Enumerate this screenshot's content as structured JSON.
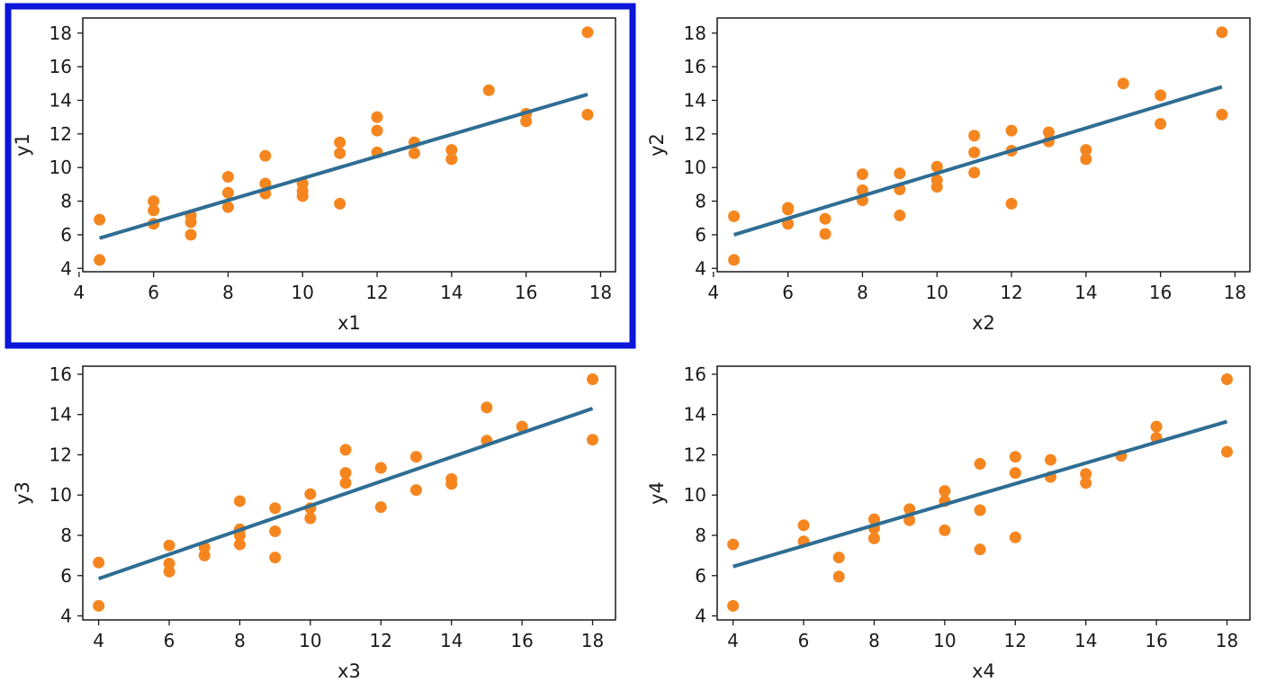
{
  "colors": {
    "point": "#f5861f",
    "line": "#2f6d93",
    "axis": "#1a1a1a",
    "highlight": "#0a16d8",
    "background": "#ffffff"
  },
  "highlighted_panel": 0,
  "chart_data": [
    {
      "type": "scatter",
      "xlabel": "x1",
      "ylabel": "y1",
      "xlim": [
        4.1,
        18.4
      ],
      "ylim": [
        3.8,
        18.9
      ],
      "xticks": [
        4,
        6,
        8,
        10,
        12,
        14,
        16,
        18
      ],
      "yticks": [
        4,
        6,
        8,
        10,
        12,
        14,
        16,
        18
      ],
      "grid": false,
      "points": [
        [
          4.55,
          4.5
        ],
        [
          4.55,
          6.9
        ],
        [
          6,
          6.65
        ],
        [
          6,
          7.45
        ],
        [
          6,
          8.0
        ],
        [
          7,
          6.0
        ],
        [
          7,
          6.75
        ],
        [
          7,
          7.15
        ],
        [
          8,
          7.65
        ],
        [
          8,
          8.5
        ],
        [
          8,
          9.45
        ],
        [
          9,
          8.45
        ],
        [
          9,
          9.05
        ],
        [
          9,
          10.7
        ],
        [
          10,
          8.3
        ],
        [
          10,
          8.6
        ],
        [
          10,
          9.05
        ],
        [
          11,
          7.85
        ],
        [
          11,
          10.85
        ],
        [
          11,
          11.5
        ],
        [
          12,
          10.9
        ],
        [
          12,
          12.2
        ],
        [
          12,
          13.0
        ],
        [
          13,
          10.85
        ],
        [
          13,
          11.5
        ],
        [
          14,
          10.5
        ],
        [
          14,
          11.05
        ],
        [
          15,
          14.6
        ],
        [
          16,
          12.75
        ],
        [
          16,
          13.2
        ],
        [
          17.65,
          13.15
        ],
        [
          17.65,
          18.05
        ]
      ],
      "fit_line": [
        [
          4.55,
          5.8
        ],
        [
          17.65,
          14.35
        ]
      ]
    },
    {
      "type": "scatter",
      "xlabel": "x2",
      "ylabel": "y2",
      "xlim": [
        4.1,
        18.4
      ],
      "ylim": [
        3.8,
        18.9
      ],
      "xticks": [
        4,
        6,
        8,
        10,
        12,
        14,
        16,
        18
      ],
      "yticks": [
        4,
        6,
        8,
        10,
        12,
        14,
        16,
        18
      ],
      "grid": false,
      "points": [
        [
          4.55,
          4.5
        ],
        [
          4.55,
          7.1
        ],
        [
          6,
          6.65
        ],
        [
          6,
          7.5
        ],
        [
          6,
          7.6
        ],
        [
          7,
          6.05
        ],
        [
          7,
          6.95
        ],
        [
          8,
          8.05
        ],
        [
          8,
          8.65
        ],
        [
          8,
          9.6
        ],
        [
          9,
          7.15
        ],
        [
          9,
          8.7
        ],
        [
          9,
          9.65
        ],
        [
          10,
          8.85
        ],
        [
          10,
          9.25
        ],
        [
          10,
          10.05
        ],
        [
          11,
          9.7
        ],
        [
          11,
          10.9
        ],
        [
          11,
          11.9
        ],
        [
          12,
          7.85
        ],
        [
          12,
          11.0
        ],
        [
          12,
          12.2
        ],
        [
          13,
          11.55
        ],
        [
          13,
          12.1
        ],
        [
          14,
          10.5
        ],
        [
          14,
          11.05
        ],
        [
          15,
          15.0
        ],
        [
          16,
          12.6
        ],
        [
          16,
          14.3
        ],
        [
          17.65,
          13.15
        ],
        [
          17.65,
          18.05
        ]
      ],
      "fit_line": [
        [
          4.55,
          6.0
        ],
        [
          17.65,
          14.8
        ]
      ]
    },
    {
      "type": "scatter",
      "xlabel": "x3",
      "ylabel": "y3",
      "xlim": [
        3.55,
        18.65
      ],
      "ylim": [
        3.8,
        16.4
      ],
      "xticks": [
        4,
        6,
        8,
        10,
        12,
        14,
        16,
        18
      ],
      "yticks": [
        4,
        6,
        8,
        10,
        12,
        14,
        16
      ],
      "grid": false,
      "points": [
        [
          4,
          4.5
        ],
        [
          4,
          6.65
        ],
        [
          6,
          6.2
        ],
        [
          6,
          6.6
        ],
        [
          6,
          7.5
        ],
        [
          7,
          7.0
        ],
        [
          7,
          7.4
        ],
        [
          8,
          7.55
        ],
        [
          8,
          8.0
        ],
        [
          8,
          8.3
        ],
        [
          8,
          9.7
        ],
        [
          9,
          6.9
        ],
        [
          9,
          8.2
        ],
        [
          9,
          9.35
        ],
        [
          10,
          8.85
        ],
        [
          10,
          9.35
        ],
        [
          10,
          10.05
        ],
        [
          11,
          10.6
        ],
        [
          11,
          11.1
        ],
        [
          11,
          12.25
        ],
        [
          12,
          9.4
        ],
        [
          12,
          11.35
        ],
        [
          13,
          10.25
        ],
        [
          13,
          11.9
        ],
        [
          14,
          10.55
        ],
        [
          14,
          10.8
        ],
        [
          15,
          12.7
        ],
        [
          15,
          14.35
        ],
        [
          16,
          13.4
        ],
        [
          18,
          12.75
        ],
        [
          18,
          15.75
        ]
      ],
      "fit_line": [
        [
          4,
          5.85
        ],
        [
          18,
          14.3
        ]
      ]
    },
    {
      "type": "scatter",
      "xlabel": "x4",
      "ylabel": "y4",
      "xlim": [
        3.55,
        18.65
      ],
      "ylim": [
        3.8,
        16.4
      ],
      "xticks": [
        4,
        6,
        8,
        10,
        12,
        14,
        16,
        18
      ],
      "yticks": [
        4,
        6,
        8,
        10,
        12,
        14,
        16
      ],
      "grid": false,
      "points": [
        [
          4,
          4.5
        ],
        [
          4,
          7.55
        ],
        [
          6,
          7.7
        ],
        [
          6,
          8.5
        ],
        [
          7,
          5.95
        ],
        [
          7,
          6.9
        ],
        [
          8,
          7.85
        ],
        [
          8,
          8.35
        ],
        [
          8,
          8.8
        ],
        [
          9,
          8.75
        ],
        [
          9,
          9.3
        ],
        [
          10,
          8.25
        ],
        [
          10,
          9.7
        ],
        [
          10,
          10.2
        ],
        [
          11,
          7.3
        ],
        [
          11,
          9.25
        ],
        [
          11,
          11.55
        ],
        [
          12,
          7.9
        ],
        [
          12,
          11.1
        ],
        [
          12,
          11.9
        ],
        [
          13,
          10.9
        ],
        [
          13,
          11.75
        ],
        [
          14,
          10.6
        ],
        [
          14,
          11.05
        ],
        [
          15,
          11.95
        ],
        [
          16,
          12.85
        ],
        [
          16,
          13.4
        ],
        [
          18,
          12.15
        ],
        [
          18,
          15.75
        ]
      ],
      "fit_line": [
        [
          4,
          6.45
        ],
        [
          18,
          13.65
        ]
      ]
    }
  ]
}
